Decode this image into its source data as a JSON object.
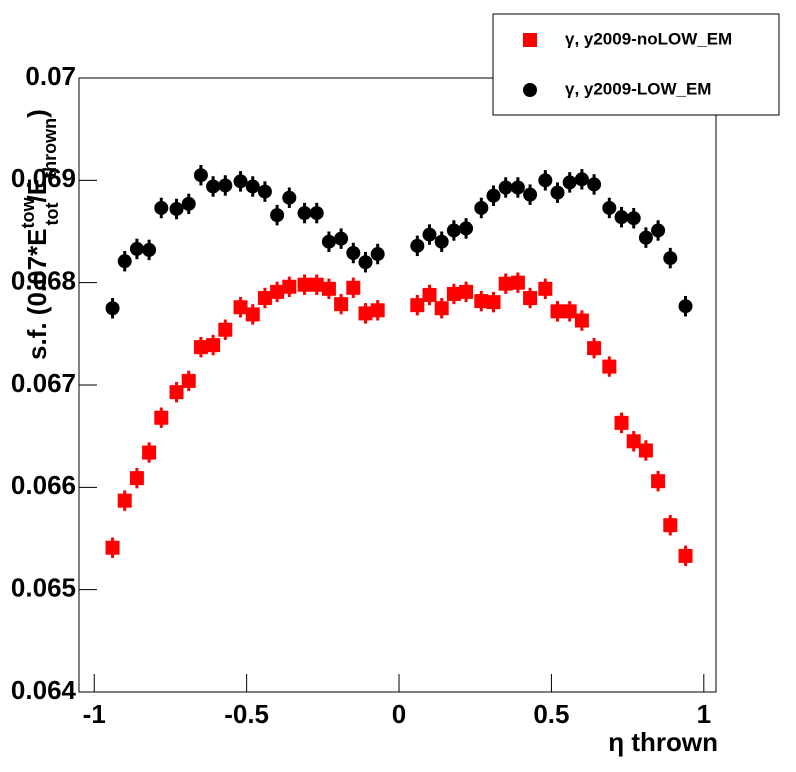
{
  "chart_data": {
    "type": "scatter",
    "xlabel": "η thrown",
    "ylabel": [
      "s.f. (0.07*E",
      "tow",
      "tot",
      "/E",
      "thrown",
      ")"
    ],
    "xlim": [
      -1.05,
      1.04
    ],
    "ylim": [
      0.064,
      0.07
    ],
    "xticks": [
      -1,
      -0.5,
      0,
      0.5,
      1
    ],
    "yticks": [
      0.064,
      0.065,
      0.066,
      0.067,
      0.068,
      0.069,
      0.07
    ],
    "x": [
      -0.94,
      -0.9,
      -0.86,
      -0.82,
      -0.78,
      -0.73,
      -0.69,
      -0.65,
      -0.61,
      -0.57,
      -0.52,
      -0.48,
      -0.44,
      -0.4,
      -0.36,
      -0.31,
      -0.27,
      -0.23,
      -0.19,
      -0.15,
      -0.11,
      -0.07,
      0.06,
      0.1,
      0.14,
      0.18,
      0.22,
      0.27,
      0.31,
      0.35,
      0.39,
      0.43,
      0.48,
      0.52,
      0.56,
      0.6,
      0.64,
      0.69,
      0.73,
      0.77,
      0.81,
      0.85,
      0.89,
      0.94
    ],
    "legend": "top-right",
    "series": [
      {
        "name": "γ, y2009-noLOW_EM",
        "color": "#ff0000",
        "marker": "square",
        "error": 0.0001,
        "values": [
          0.06541,
          0.06587,
          0.06609,
          0.06634,
          0.06668,
          0.06693,
          0.06704,
          0.06737,
          0.06739,
          0.06754,
          0.06776,
          0.06769,
          0.06785,
          0.06791,
          0.06796,
          0.06798,
          0.06798,
          0.06794,
          0.06779,
          0.06795,
          0.0677,
          0.06773,
          0.06778,
          0.06788,
          0.06775,
          0.06789,
          0.06791,
          0.06782,
          0.06781,
          0.06799,
          0.068,
          0.06785,
          0.06794,
          0.06772,
          0.06772,
          0.06763,
          0.06736,
          0.06718,
          0.06663,
          0.06645,
          0.06636,
          0.06606,
          0.06563,
          0.06533
        ]
      },
      {
        "name": "γ, y2009-LOW_EM",
        "color": "#000000",
        "marker": "circle",
        "error": 0.0001,
        "values": [
          0.06775,
          0.06821,
          0.06833,
          0.06832,
          0.06873,
          0.06872,
          0.06877,
          0.06905,
          0.06894,
          0.06895,
          0.06899,
          0.06894,
          0.06889,
          0.06866,
          0.06883,
          0.06868,
          0.06868,
          0.0684,
          0.06843,
          0.06829,
          0.0682,
          0.06828,
          0.06836,
          0.06847,
          0.0684,
          0.06851,
          0.06853,
          0.06873,
          0.06885,
          0.06893,
          0.06893,
          0.06886,
          0.069,
          0.06888,
          0.06898,
          0.06901,
          0.06896,
          0.06873,
          0.06864,
          0.06863,
          0.06844,
          0.06851,
          0.06824,
          0.06777
        ]
      }
    ]
  }
}
